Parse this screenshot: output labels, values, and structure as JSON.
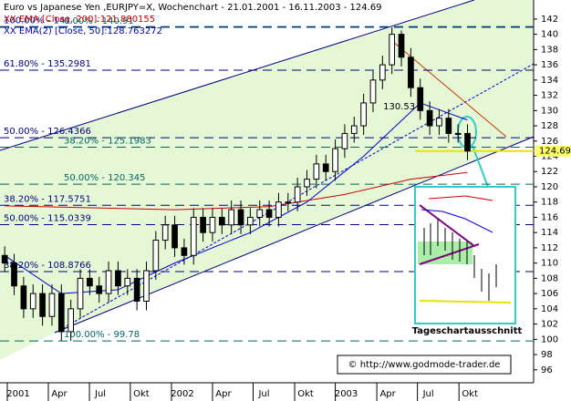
{
  "chart_data": {
    "type": "candlestick",
    "title": "Euro vs Japanese Yen ,EURJPY=X, Wochenchart - 21.01.2001 - 16.11.2003 - 124.69",
    "indicators": [
      {
        "name": "XX EMA [Close, 200]:121.880155",
        "color": "#cc0000",
        "x": [
          0,
          18,
          28,
          36,
          43,
          49
        ],
        "values": [
          117.5,
          117,
          117.4,
          119,
          121,
          121.88
        ]
      },
      {
        "name": "XX EMA(2) [Close, 50]:128.763272",
        "color": "#0000cc",
        "x": [
          0,
          6,
          12,
          18,
          26,
          32,
          38,
          44,
          49
        ],
        "values": [
          111,
          106,
          106.5,
          110,
          114,
          118,
          124,
          131,
          128.76
        ]
      }
    ],
    "open": [
      111,
      110,
      107,
      104,
      106,
      103,
      106,
      101,
      104,
      108,
      107,
      106,
      109,
      107,
      108,
      105,
      109,
      113,
      115,
      112,
      111,
      116,
      114,
      116,
      115,
      117,
      115,
      116,
      117,
      116,
      118,
      118,
      120,
      121,
      123,
      122,
      125,
      127,
      128,
      131,
      134,
      136,
      140,
      137,
      133,
      130,
      128,
      129,
      127,
      127
    ],
    "high": [
      112.2,
      111.2,
      108.2,
      107.2,
      107.2,
      107.2,
      107.2,
      105.2,
      109.2,
      109.2,
      108.2,
      110.2,
      110.2,
      109.2,
      109.2,
      110.2,
      114.2,
      116.2,
      116.2,
      113.2,
      117.2,
      117.2,
      117.2,
      117.2,
      118.2,
      118.2,
      117.2,
      118.2,
      118.2,
      119.2,
      119.2,
      121.2,
      122.2,
      124.2,
      124.2,
      126.2,
      128.2,
      129.2,
      132.2,
      135.2,
      137.2,
      140.91,
      140.5,
      138.2,
      134.2,
      131.2,
      130.2,
      130.2,
      128.2,
      128.2
    ],
    "low": [
      108.8,
      105.8,
      102.8,
      102.8,
      101.8,
      101.8,
      99.78,
      99.8,
      102.8,
      105.8,
      104.8,
      104.8,
      105.8,
      105.8,
      103.8,
      103.8,
      107.8,
      111.8,
      110.8,
      109.8,
      109.8,
      112.8,
      112.8,
      113.8,
      113.8,
      113.8,
      113.8,
      114.8,
      114.8,
      114.8,
      116.8,
      116.8,
      118.8,
      119.8,
      120.8,
      120.8,
      123.8,
      125.8,
      126.8,
      129.8,
      132.8,
      134.8,
      135.8,
      131.8,
      128.8,
      126.8,
      126.8,
      125.8,
      125.8,
      123.5
    ],
    "close": [
      110,
      107,
      104,
      106,
      103,
      106,
      101,
      104,
      108,
      107,
      106,
      109,
      107,
      108,
      105,
      109,
      113,
      115,
      112,
      111,
      116,
      114,
      116,
      115,
      117,
      115,
      116,
      117,
      116,
      118,
      118,
      120,
      121,
      123,
      122,
      125,
      127,
      128,
      131,
      134,
      136,
      140,
      137,
      133,
      130,
      128,
      129,
      127,
      127,
      124.69
    ],
    "up_color": "#ffffff",
    "down_color": "#000000",
    "levels": [
      {
        "label": "100.00% - 141",
        "value": 141,
        "color": "#000080"
      },
      {
        "label": "0.00% - 140.91",
        "value": 140.91,
        "color": "#006666"
      },
      {
        "label": "61.80% - 135.2981",
        "value": 135.2981,
        "color": "#000080"
      },
      {
        "label": "50.00% - 126.4366",
        "value": 126.4366,
        "color": "#000080"
      },
      {
        "label": "38.20% - 125.1983",
        "value": 125.1983,
        "color": "#006666"
      },
      {
        "label": "50.00% - 120.345",
        "value": 120.345,
        "color": "#006666"
      },
      {
        "label": "38.20% - 117.5751",
        "value": 117.5751,
        "color": "#000080"
      },
      {
        "label": "50.00% - 115.0339",
        "value": 115.0339,
        "color": "#000080"
      },
      {
        "label": "38.20% - 108.8766",
        "value": 108.8766,
        "color": "#000080"
      },
      {
        "label": "100.00% - 99.78",
        "value": 99.78,
        "color": "#006666"
      }
    ],
    "annotations": [
      {
        "text": "130.53",
        "value": 130.53,
        "x": 45
      },
      {
        "text": "Tageschartausschnitt"
      },
      {
        "text": "© http://www.godmode-trader.de"
      }
    ],
    "last": {
      "label": "124.69",
      "value": 124.69
    },
    "xlim": [
      -0.5,
      56
    ],
    "xticks": [
      {
        "value": 0.27,
        "label": "2001"
      },
      {
        "value": 4.62,
        "label": "Apr"
      },
      {
        "value": 8.97,
        "label": "Jul"
      },
      {
        "value": 13.3,
        "label": "Okt"
      },
      {
        "value": 17.66,
        "label": "2002"
      },
      {
        "value": 22.0,
        "label": "Apr"
      },
      {
        "value": 26.3,
        "label": "Jul"
      },
      {
        "value": 30.7,
        "label": "Okt"
      },
      {
        "value": 35.0,
        "label": "2003"
      },
      {
        "value": 39.4,
        "label": "Apr"
      },
      {
        "value": 43.7,
        "label": "Jul"
      },
      {
        "value": 48.1,
        "label": "Okt"
      }
    ],
    "ylim": [
      94.3,
      144.5
    ],
    "yticks": [
      96,
      98,
      100,
      102,
      104,
      106,
      108,
      110,
      112,
      114,
      116,
      118,
      120,
      122,
      124,
      126,
      128,
      130,
      132,
      134,
      136,
      138,
      140,
      142
    ]
  }
}
